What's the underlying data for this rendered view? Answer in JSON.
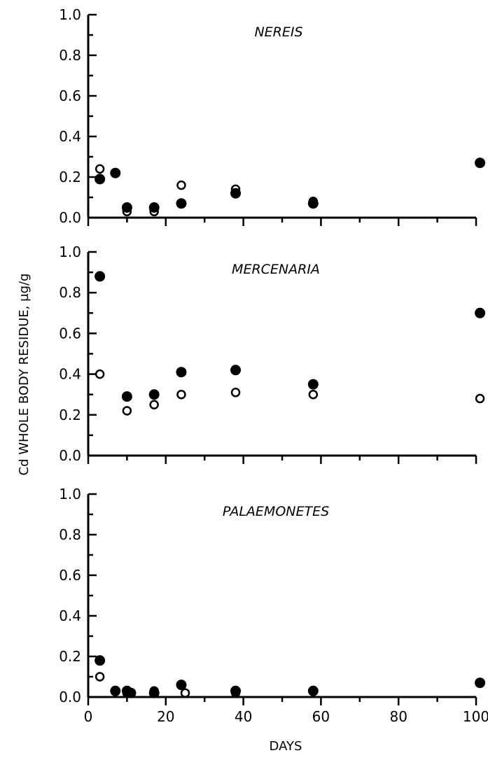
{
  "chart_data": {
    "type": "scatter",
    "ylabel": "Cd WHOLE BODY RESIDUE, µg/g",
    "xlabel": "DAYS",
    "xlim": [
      0,
      100
    ],
    "x_ticks": [
      "0",
      "20",
      "40",
      "60",
      "80",
      "100"
    ],
    "y_ticks": [
      "0.0",
      "0.2",
      "0.4",
      "0.6",
      "0.8",
      "1.0"
    ],
    "grid": false,
    "legend": "none",
    "panels": [
      {
        "title": "NEREIS",
        "ylim": [
          0,
          1.0
        ],
        "series": [
          {
            "marker": "filled",
            "points": [
              [
                3,
                0.19
              ],
              [
                7,
                0.22
              ],
              [
                10,
                0.05
              ],
              [
                17,
                0.05
              ],
              [
                24,
                0.07
              ],
              [
                38,
                0.12
              ],
              [
                58,
                0.07
              ],
              [
                101,
                0.27
              ]
            ]
          },
          {
            "marker": "open",
            "points": [
              [
                3,
                0.24
              ],
              [
                10,
                0.03
              ],
              [
                17,
                0.03
              ],
              [
                24,
                0.16
              ],
              [
                38,
                0.14
              ],
              [
                58,
                0.08
              ]
            ]
          }
        ]
      },
      {
        "title": "MERCENARIA",
        "ylim": [
          0,
          1.0
        ],
        "series": [
          {
            "marker": "filled",
            "points": [
              [
                3,
                0.88
              ],
              [
                10,
                0.29
              ],
              [
                17,
                0.3
              ],
              [
                24,
                0.41
              ],
              [
                38,
                0.42
              ],
              [
                58,
                0.35
              ],
              [
                101,
                0.7
              ]
            ]
          },
          {
            "marker": "open",
            "points": [
              [
                3,
                0.4
              ],
              [
                10,
                0.22
              ],
              [
                17,
                0.25
              ],
              [
                24,
                0.3
              ],
              [
                38,
                0.31
              ],
              [
                58,
                0.3
              ],
              [
                101,
                0.28
              ]
            ]
          }
        ]
      },
      {
        "title": "PALAEMONETES",
        "ylim": [
          0,
          1.0
        ],
        "series": [
          {
            "marker": "filled",
            "points": [
              [
                3,
                0.18
              ],
              [
                7,
                0.03
              ],
              [
                10,
                0.03
              ],
              [
                11,
                0.02
              ],
              [
                17,
                0.02
              ],
              [
                24,
                0.06
              ],
              [
                38,
                0.03
              ],
              [
                58,
                0.03
              ],
              [
                101,
                0.07
              ]
            ]
          },
          {
            "marker": "open",
            "points": [
              [
                3,
                0.1
              ],
              [
                10,
                0.02
              ],
              [
                17,
                0.03
              ],
              [
                25,
                0.02
              ],
              [
                38,
                0.02
              ]
            ]
          }
        ]
      }
    ]
  }
}
